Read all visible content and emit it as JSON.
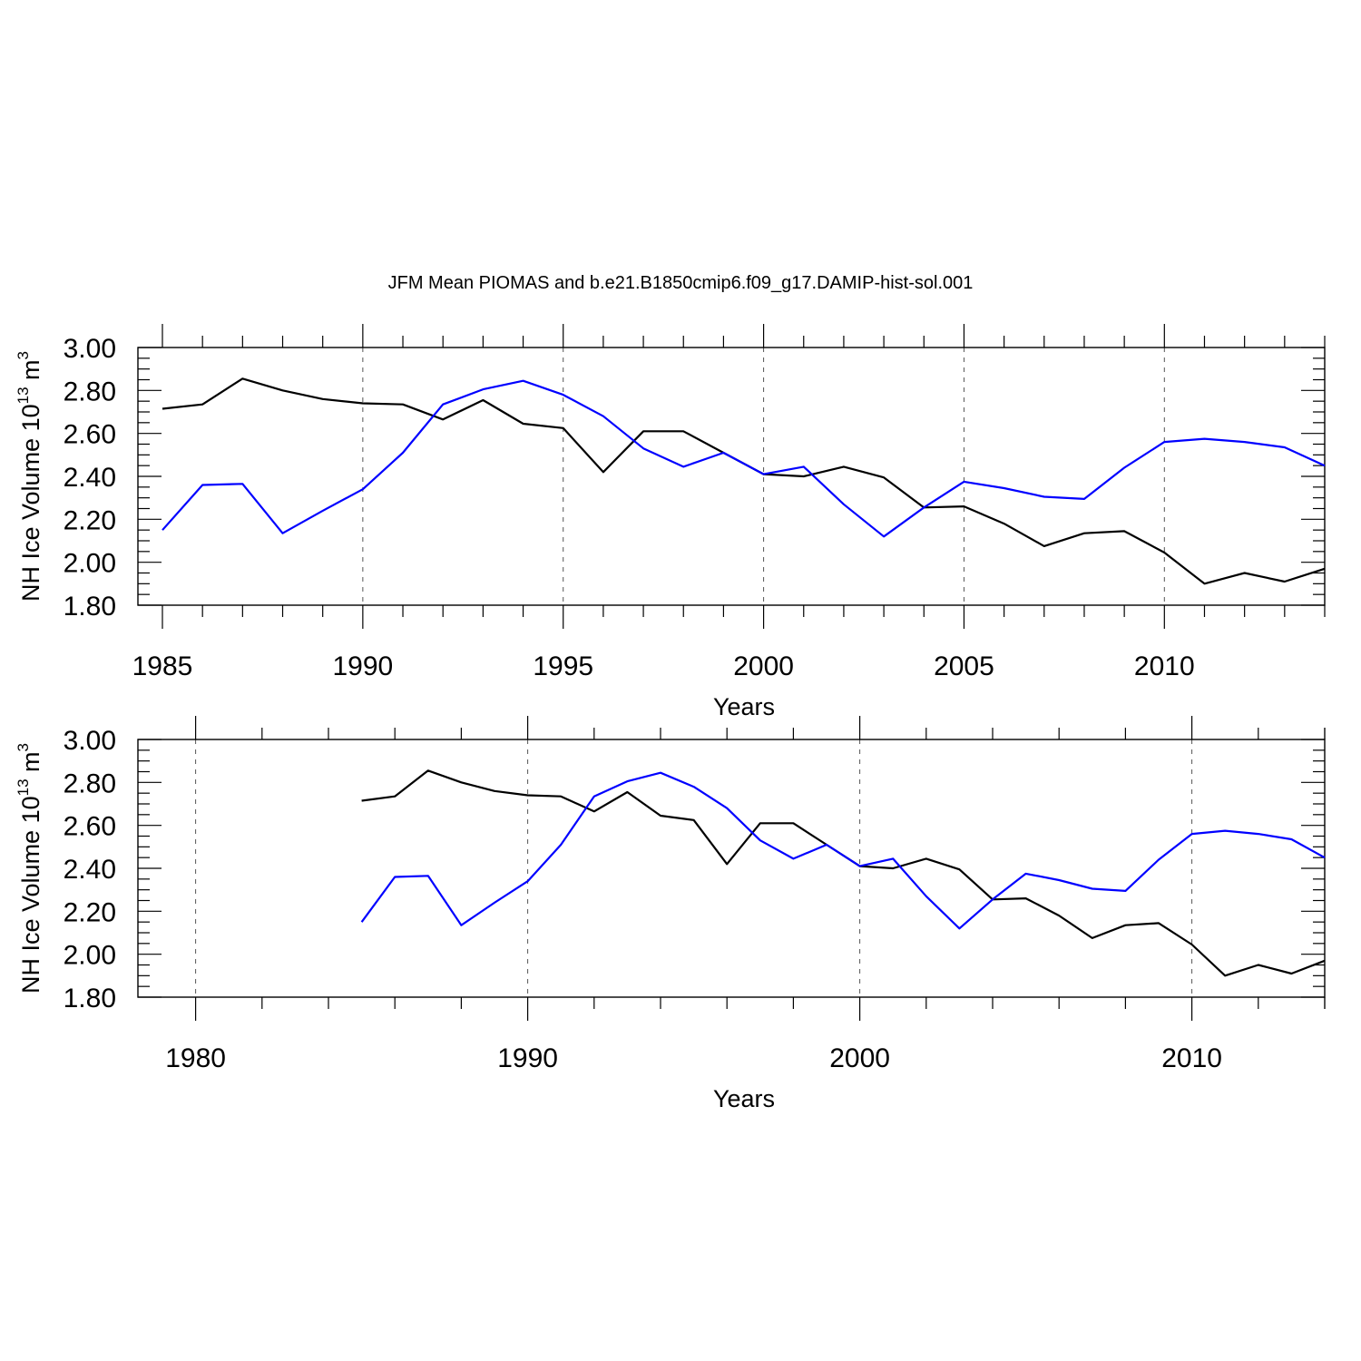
{
  "title": "JFM Mean PIOMAS and b.e21.B1850cmip6.f09_g17.DAMIP-hist-sol.001",
  "ylabel_main": "NH Ice Volume 10",
  "ylabel_exp": "13",
  "ylabel_unit": " m",
  "ylabel_unit_exp": "3",
  "chart_data": [
    {
      "type": "line",
      "xlabel": "Years",
      "xlim": [
        1985,
        2014
      ],
      "ylim": [
        1.8,
        3.0
      ],
      "xticks": [
        1985,
        1990,
        1995,
        2000,
        2005,
        2010
      ],
      "yticks": [
        "1.80",
        "2.00",
        "2.20",
        "2.40",
        "2.60",
        "2.80",
        "3.00"
      ],
      "grid": "vertical-dashed",
      "x": [
        1985,
        1986,
        1987,
        1988,
        1989,
        1990,
        1991,
        1992,
        1993,
        1994,
        1995,
        1996,
        1997,
        1998,
        1999,
        2000,
        2001,
        2002,
        2003,
        2004,
        2005,
        2006,
        2007,
        2008,
        2009,
        2010,
        2011,
        2012,
        2013,
        2014
      ],
      "series": [
        {
          "color": "#000000",
          "values": [
            2.715,
            2.735,
            2.855,
            2.8,
            2.76,
            2.74,
            2.735,
            2.665,
            2.755,
            2.645,
            2.625,
            2.42,
            2.61,
            2.61,
            2.51,
            2.41,
            2.4,
            2.445,
            2.395,
            2.255,
            2.26,
            2.18,
            2.075,
            2.135,
            2.145,
            2.045,
            1.9,
            1.95,
            1.91,
            1.97
          ]
        },
        {
          "color": "#0000ff",
          "values": [
            2.15,
            2.36,
            2.365,
            2.135,
            2.24,
            2.34,
            2.51,
            2.735,
            2.805,
            2.845,
            2.78,
            2.68,
            2.53,
            2.445,
            2.51,
            2.41,
            2.445,
            2.27,
            2.12,
            2.255,
            2.375,
            2.345,
            2.305,
            2.295,
            2.44,
            2.56,
            2.575,
            2.56,
            2.535,
            2.45
          ]
        }
      ]
    },
    {
      "type": "line",
      "xlabel": "Years",
      "xlim": [
        1979,
        2014
      ],
      "ylim": [
        1.8,
        3.0
      ],
      "xticks": [
        1980,
        1990,
        2000,
        2010
      ],
      "yticks": [
        "1.80",
        "2.00",
        "2.20",
        "2.40",
        "2.60",
        "2.80",
        "3.00"
      ],
      "grid": "vertical-dashed",
      "x": [
        1985,
        1986,
        1987,
        1988,
        1989,
        1990,
        1991,
        1992,
        1993,
        1994,
        1995,
        1996,
        1997,
        1998,
        1999,
        2000,
        2001,
        2002,
        2003,
        2004,
        2005,
        2006,
        2007,
        2008,
        2009,
        2010,
        2011,
        2012,
        2013,
        2014
      ],
      "series": [
        {
          "color": "#000000",
          "values": [
            2.715,
            2.735,
            2.855,
            2.8,
            2.76,
            2.74,
            2.735,
            2.665,
            2.755,
            2.645,
            2.625,
            2.42,
            2.61,
            2.61,
            2.51,
            2.41,
            2.4,
            2.445,
            2.395,
            2.255,
            2.26,
            2.18,
            2.075,
            2.135,
            2.145,
            2.045,
            1.9,
            1.95,
            1.91,
            1.97
          ]
        },
        {
          "color": "#0000ff",
          "values": [
            2.15,
            2.36,
            2.365,
            2.135,
            2.24,
            2.34,
            2.51,
            2.735,
            2.805,
            2.845,
            2.78,
            2.68,
            2.53,
            2.445,
            2.51,
            2.41,
            2.445,
            2.27,
            2.12,
            2.255,
            2.375,
            2.345,
            2.305,
            2.295,
            2.44,
            2.56,
            2.575,
            2.56,
            2.535,
            2.45
          ]
        }
      ]
    }
  ]
}
